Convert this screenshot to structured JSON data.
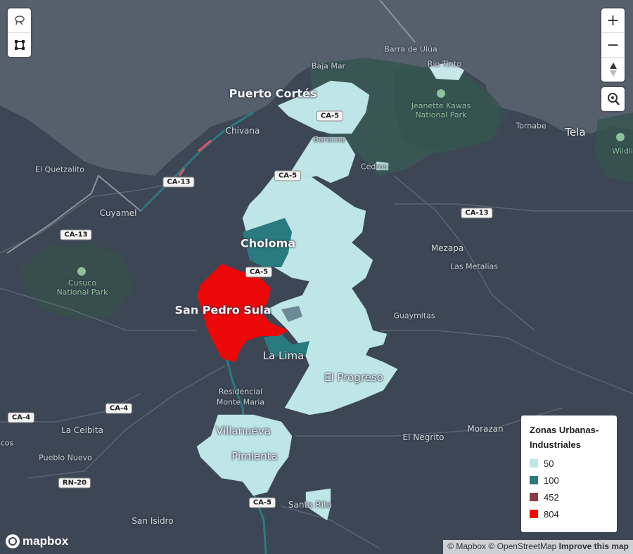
{
  "map": {
    "places": {
      "puerto_cortes": "Puerto Cortés",
      "bajamar": "Baja Mar",
      "barra_ulua": "Barra de Ulúa",
      "rio_tinto": "Rio Tinto",
      "chivana": "Chivana",
      "el_quetzalito": "El Quetzalito",
      "baracoa": "Baracoa",
      "cedros": "Cedros",
      "tornabe": "Tornabe",
      "tela": "Tela",
      "wildl": "Wildli",
      "cuyamel": "Cuyamel",
      "choloma": "Choloma",
      "mezapa": "Mezapa",
      "las_metalias": "Las Metalias",
      "san_pedro_sula": "San Pedro Sula",
      "guaymitas": "Guaymitas",
      "la_lima": "La Lima",
      "el_progreso": "El Progreso",
      "residencial": "Residencial",
      "monte_maria": "Monte Maria",
      "la_ceibita": "La Ceibita",
      "cos": "cos",
      "pueblo_nuevo": "Pueblo Nuevo",
      "villanueva": "Villanueva",
      "pimienta": "Pimienta",
      "el_negrito": "El Negrito",
      "morazan": "Morazan",
      "santa_rita": "Santa Rita",
      "san_isidro": "San Isidro"
    },
    "parks": {
      "jeanette": "Jeanette Kawas\nNational Park",
      "cusuco": "Cusuco\nNational Park"
    },
    "shields": {
      "ca5_a": "CA-5",
      "ca5_b": "CA-5",
      "ca5_c": "CA-5",
      "ca5_d": "CA-5",
      "ca13_a": "CA-13",
      "ca13_b": "CA-13",
      "ca13_c": "CA-13",
      "ca4_a": "CA-4",
      "ca4_b": "CA-4",
      "rn20": "RN-20"
    }
  },
  "legend": {
    "title": "Zonas Urbanas-Industriales",
    "items": [
      {
        "label": "50",
        "color": "#bfe6e6"
      },
      {
        "label": "100",
        "color": "#2a7b80"
      },
      {
        "label": "452",
        "color": "#8c3a45"
      },
      {
        "label": "804",
        "color": "#ff0000"
      }
    ]
  },
  "controls": {
    "zoom_in": "+",
    "zoom_out": "−",
    "compass": "compass-icon"
  },
  "attribution": {
    "mapbox": "© Mapbox",
    "osm": "© OpenStreetMap",
    "improve": "Improve this map"
  },
  "logo": {
    "text": "mapbox"
  }
}
